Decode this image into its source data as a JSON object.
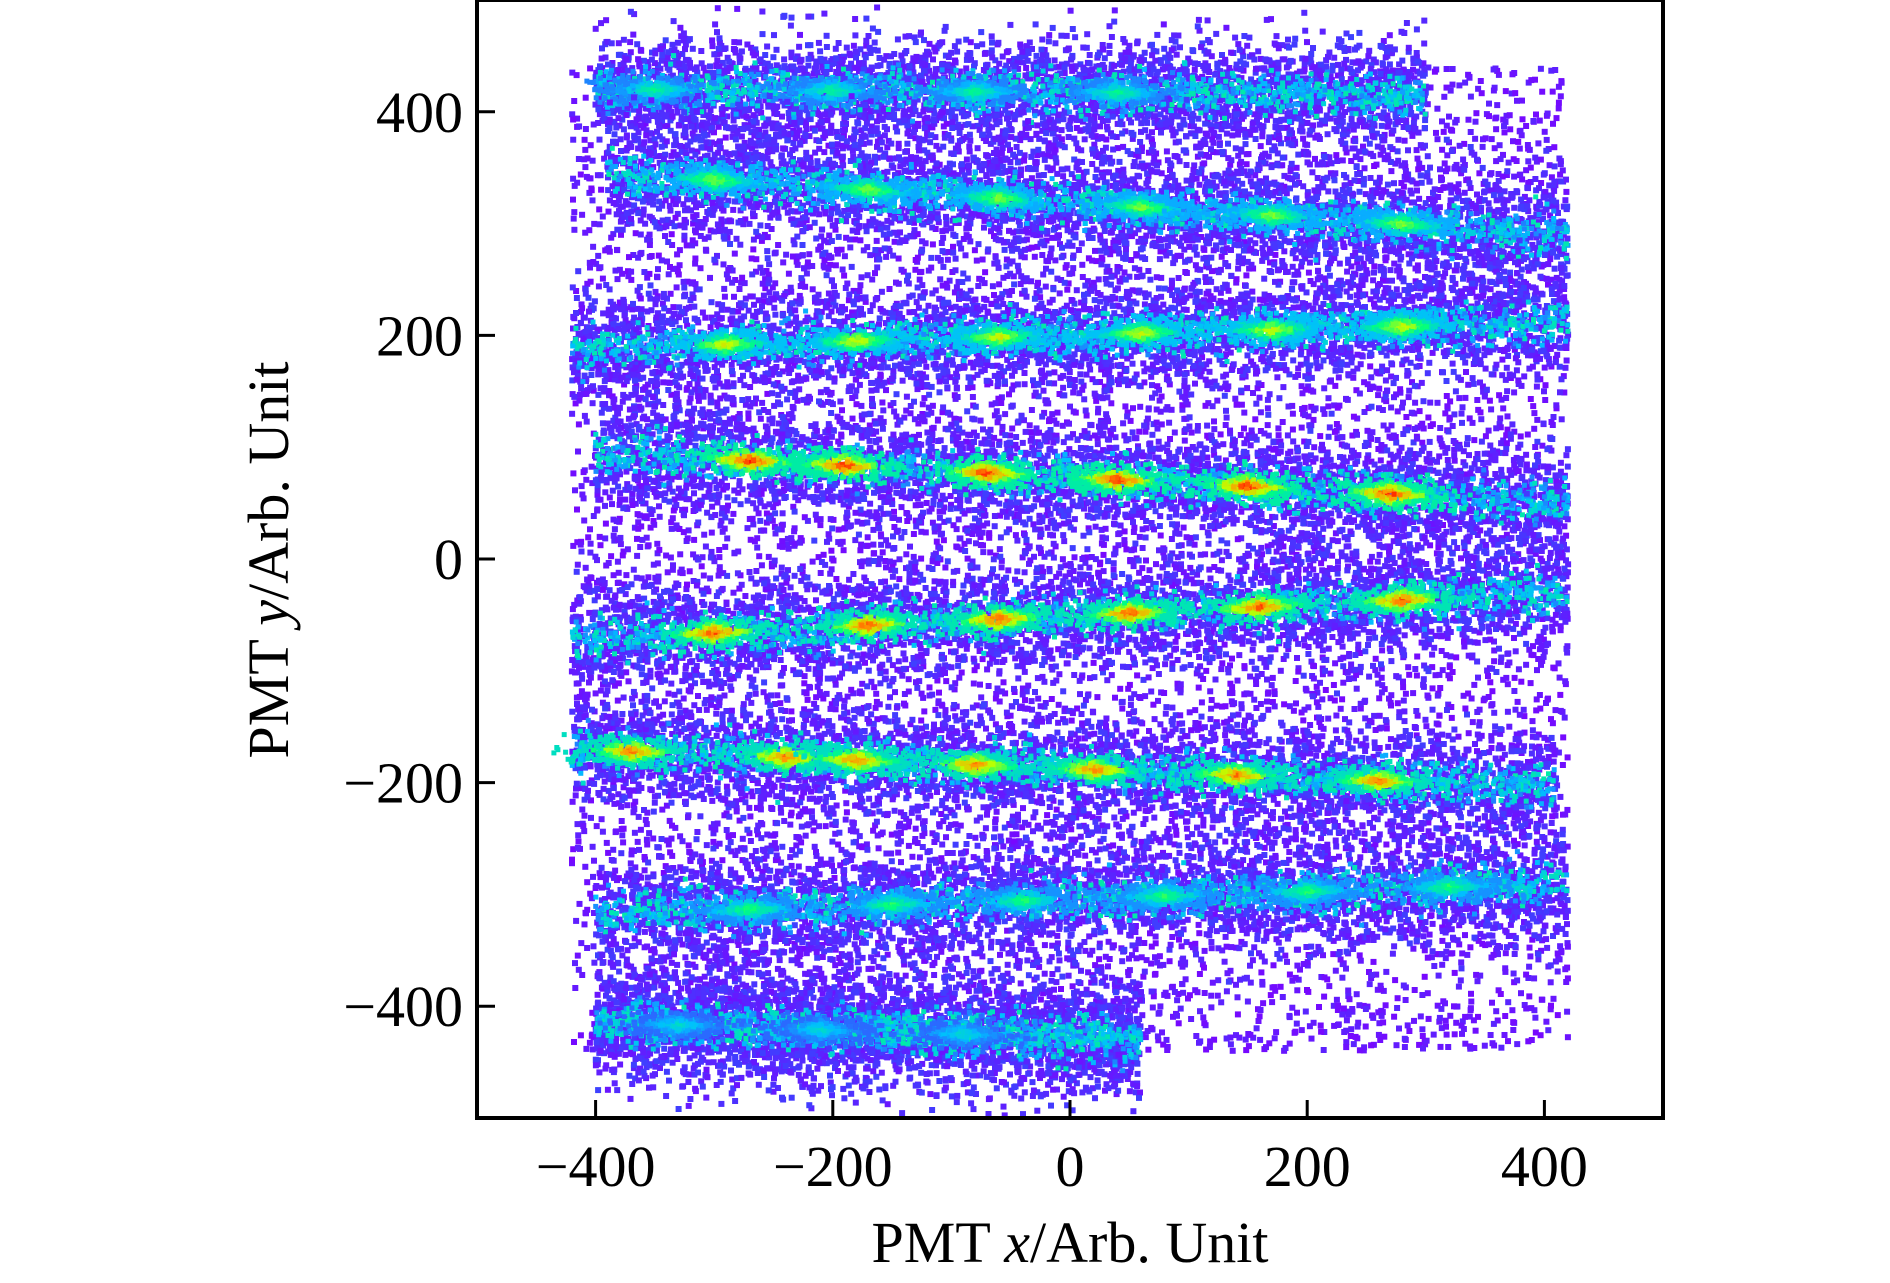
{
  "chart_data": {
    "type": "heatmap",
    "title": "",
    "xlabel": {
      "pre": "PMT ",
      "var": "x",
      "post": "/Arb. Unit"
    },
    "ylabel": {
      "pre": "PMT ",
      "var": "y",
      "post": "/Arb. Unit"
    },
    "xlim": [
      -500,
      500
    ],
    "ylim": [
      -500,
      500
    ],
    "xticks": [
      -400,
      -200,
      0,
      200,
      400
    ],
    "yticks": [
      -400,
      -200,
      0,
      200,
      400
    ],
    "xtick_labels": [
      "−400",
      "−200",
      "0",
      "200",
      "400"
    ],
    "ytick_labels": [
      "−400",
      "−200",
      "0",
      "200",
      "400"
    ],
    "grid": false,
    "legend": "none",
    "colormap": [
      "#7f00ff",
      "#3f3fff",
      "#00bfff",
      "#00ff7f",
      "#bfff00",
      "#ff9900",
      "#ff0000"
    ],
    "bands": [
      {
        "y_at_x_min": 420,
        "y_at_x_max": 415,
        "x_range": [
          -400,
          300
        ],
        "hotspots_x": [
          -350,
          -200,
          -80,
          40
        ],
        "peak": 0.45
      },
      {
        "y_at_x_min": 345,
        "y_at_x_max": 290,
        "x_range": [
          -390,
          420
        ],
        "hotspots_x": [
          -300,
          -170,
          -60,
          60,
          170,
          280
        ],
        "peak": 0.6
      },
      {
        "y_at_x_min": 188,
        "y_at_x_max": 212,
        "x_range": [
          -420,
          420
        ],
        "hotspots_x": [
          -290,
          -180,
          -60,
          60,
          170,
          280
        ],
        "peak": 0.7
      },
      {
        "y_at_x_min": 95,
        "y_at_x_max": 50,
        "x_range": [
          -400,
          420
        ],
        "hotspots_x": [
          -270,
          -190,
          -70,
          40,
          150,
          270
        ],
        "peak": 1.0
      },
      {
        "y_at_x_min": -72,
        "y_at_x_max": -30,
        "x_range": [
          -420,
          420
        ],
        "hotspots_x": [
          -300,
          -170,
          -60,
          50,
          160,
          280
        ],
        "peak": 0.95
      },
      {
        "y_at_x_min": -170,
        "y_at_x_max": -205,
        "x_range": [
          -420,
          410
        ],
        "hotspots_x": [
          -370,
          -240,
          -180,
          -80,
          20,
          140,
          260
        ],
        "peak": 0.9
      },
      {
        "y_at_x_min": -318,
        "y_at_x_max": -290,
        "x_range": [
          -400,
          420
        ],
        "hotspots_x": [
          -270,
          -150,
          -40,
          80,
          200,
          320
        ],
        "peak": 0.5
      },
      {
        "y_at_x_min": -415,
        "y_at_x_max": -430,
        "x_range": [
          -400,
          60
        ],
        "hotspots_x": [
          -330,
          -210,
          -90
        ],
        "peak": 0.35
      }
    ]
  }
}
